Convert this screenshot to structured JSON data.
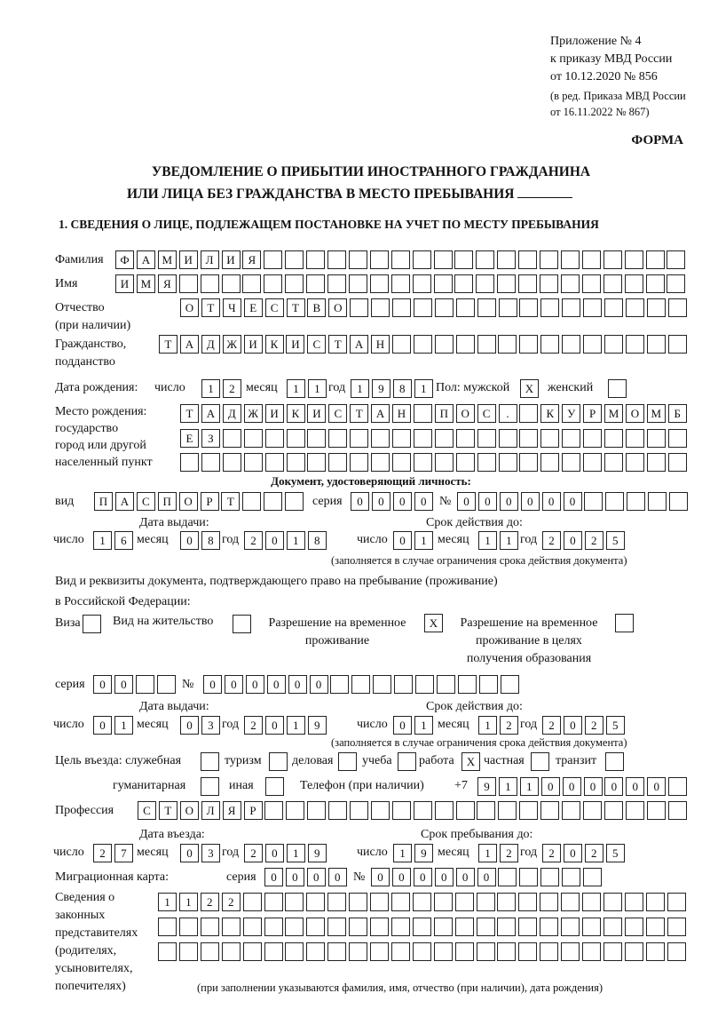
{
  "header": {
    "appendix": [
      "Приложение № 4",
      "к приказу МВД России",
      "от 10.12.2020 № 856"
    ],
    "amendment": [
      "(в ред. Приказа МВД России",
      "от 16.11.2022 № 867)"
    ],
    "form_label": "ФОРМА",
    "title_line1": "УВЕДОМЛЕНИЕ О ПРИБЫТИИ ИНОСТРАННОГО ГРАЖДАНИНА",
    "title_line2": "ИЛИ ЛИЦА БЕЗ ГРАЖДАНСТВА В МЕСТО ПРЕБЫВАНИЯ",
    "section1_title": "1. СВЕДЕНИЯ О ЛИЦЕ, ПОДЛЕЖАЩЕМ ПОСТАНОВКЕ НА УЧЕТ ПО МЕСТУ ПРЕБЫВАНИЯ"
  },
  "person": {
    "surname": {
      "label": "Фамилия",
      "value": "ФАМИЛИЯ"
    },
    "name": {
      "label": "Имя",
      "value": "ИМЯ"
    },
    "patronymic": {
      "label1": "Отчество",
      "label2": "(при наличии)",
      "value": "ОТЧЕСТВО"
    },
    "citizenship": {
      "label1": "Гражданство,",
      "label2": "подданство",
      "value": "ТАДЖИКИСТАН"
    },
    "birth_date": {
      "label": "Дата рождения:",
      "day_label": "число",
      "day": "12",
      "month_label": "месяц",
      "month": "11",
      "year_label": "год",
      "year": "1981"
    },
    "sex": {
      "label_male": "Пол: мужской",
      "male": "X",
      "label_female": "женский",
      "female": ""
    },
    "birth_place": {
      "labels": [
        "Место рождения:",
        "государство",
        "город или другой",
        "населенный пункт"
      ],
      "line1": "ТАДЖИКИСТАН ПОС. КУРМОМБ",
      "line2": "ЕЗ",
      "line3": ""
    }
  },
  "id_document": {
    "title": "Документ, удостоверяющий личность:",
    "type_label": "вид",
    "type": "ПАСПОРТ",
    "series_label": "серия",
    "series": "0000",
    "number_label": "№",
    "number": "000000",
    "issue_label": "Дата выдачи:",
    "valid_label": "Срок действия до:",
    "day_label": "число",
    "month_label": "месяц",
    "year_label": "год",
    "issue": {
      "day": "16",
      "month": "08",
      "year": "2018"
    },
    "valid": {
      "day": "01",
      "month": "11",
      "year": "2025"
    },
    "note": "(заполняется в случае ограничения срока действия документа)"
  },
  "residence_document": {
    "title1": "Вид и реквизиты документа, подтверждающего право на пребывание (проживание)",
    "title2": "в Российской Федерации:",
    "visa_label": "Виза",
    "visa": "",
    "residence_permit_label": "Вид на жительство",
    "residence_permit": "",
    "temp_permit_label1": "Разрешение на временное",
    "temp_permit_label2": "проживание",
    "temp_permit": "X",
    "edu_permit_label1": "Разрешение на временное",
    "edu_permit_label2": "проживание в целях",
    "edu_permit_label3": "получения образования",
    "edu_permit": "",
    "series_label": "серия",
    "series": "00",
    "number_label": "№",
    "number": "000000",
    "issue_label": "Дата выдачи:",
    "valid_label": "Срок действия до:",
    "day_label": "число",
    "month_label": "месяц",
    "year_label": "год",
    "issue": {
      "day": "01",
      "month": "03",
      "year": "2019"
    },
    "valid": {
      "day": "01",
      "month": "12",
      "year": "2025"
    },
    "note": "(заполняется в случае ограничения срока действия документа)"
  },
  "purpose": {
    "label": "Цель въезда: служебная",
    "business_trip": "",
    "tourism_label": "туризм",
    "tourism": "",
    "business_label": "деловая",
    "business": "",
    "study_label": "учеба",
    "study": "",
    "work_label": "работа",
    "work": "X",
    "private_label": "частная",
    "private": "",
    "transit_label": "транзит",
    "transit": "",
    "humanitarian_label": "гуманитарная",
    "humanitarian": "",
    "other_label": "иная",
    "other": ""
  },
  "phone": {
    "label": "Телефон (при наличии)",
    "prefix": "+7",
    "value": "911000000"
  },
  "profession": {
    "label": "Профессия",
    "value": "СТОЛЯР"
  },
  "entry": {
    "entry_label": "Дата въезда:",
    "stay_label": "Срок пребывания до:",
    "day_label": "число",
    "month_label": "месяц",
    "year_label": "год",
    "entry": {
      "day": "27",
      "month": "03",
      "year": "2019"
    },
    "stay": {
      "day": "19",
      "month": "12",
      "year": "2025"
    }
  },
  "migration_card": {
    "label": "Миграционная карта:",
    "series_label": "серия",
    "series": "0000",
    "number_label": "№",
    "number": "000000"
  },
  "representatives": {
    "labels": [
      "Сведения о",
      "законных",
      "представителях",
      "(родителях,",
      "усыновителях,",
      "попечителях)"
    ],
    "line1": "1122",
    "line2": "",
    "line3": "",
    "note": "(при заполнении указываются фамилия, имя, отчество (при наличии), дата рождения)"
  }
}
